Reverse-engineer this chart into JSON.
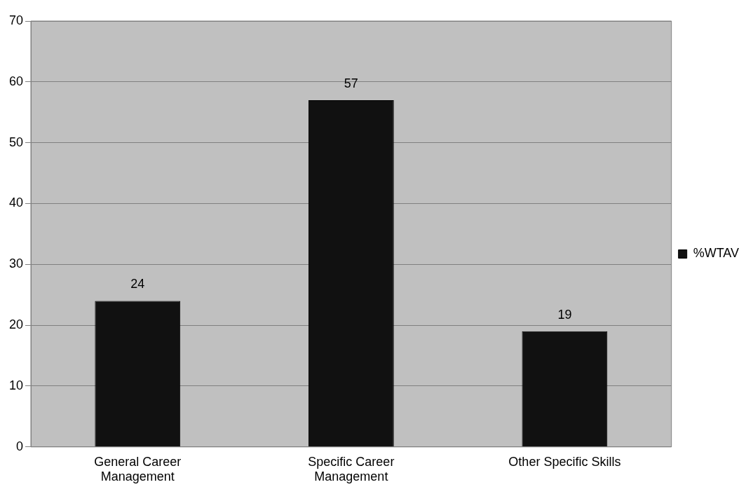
{
  "chart_data": {
    "type": "bar",
    "categories": [
      "General Career Management",
      "Specific Career Management",
      "Other Specific Skills"
    ],
    "series": [
      {
        "name": "%WTAV",
        "color": "#111111",
        "values": [
          24,
          57,
          19
        ]
      }
    ],
    "ylim": [
      0,
      70
    ],
    "yticks": [
      0,
      10,
      20,
      30,
      40,
      50,
      60,
      70
    ],
    "grid": "y",
    "legend": "right",
    "data_labels": true
  }
}
